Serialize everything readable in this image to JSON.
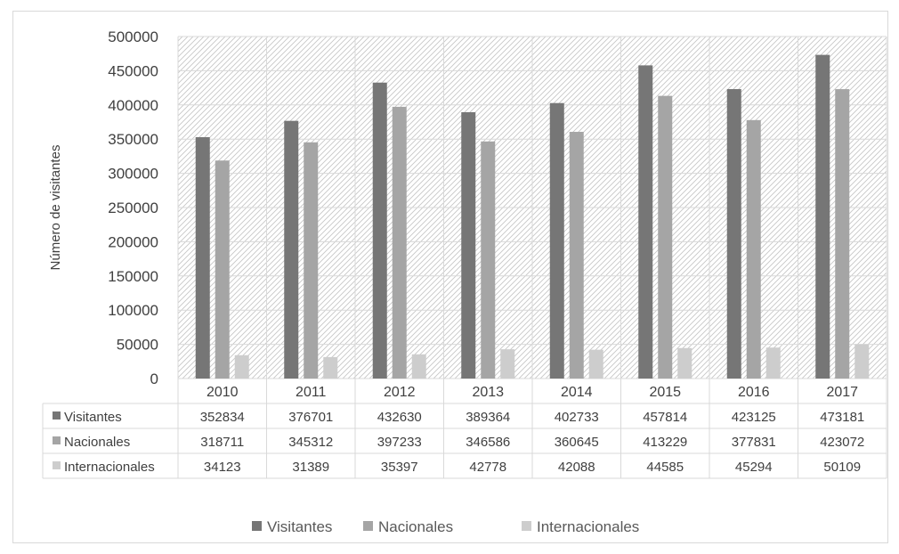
{
  "chart_data": {
    "type": "bar",
    "title": "",
    "xlabel": "",
    "ylabel": "Número de visitantes",
    "ylim": [
      0,
      500000
    ],
    "yticks": [
      0,
      50000,
      100000,
      150000,
      200000,
      250000,
      300000,
      350000,
      400000,
      450000,
      500000
    ],
    "categories": [
      "2010",
      "2011",
      "2012",
      "2013",
      "2014",
      "2015",
      "2016",
      "2017"
    ],
    "series": [
      {
        "name": "Visitantes",
        "color": "#767676",
        "values": [
          352834,
          376701,
          432630,
          389364,
          402733,
          457814,
          423125,
          473181
        ]
      },
      {
        "name": "Nacionales",
        "color": "#a5a5a5",
        "values": [
          318711,
          345312,
          397233,
          346586,
          360645,
          413229,
          377831,
          423072
        ]
      },
      {
        "name": "Internacionales",
        "color": "#cdcdcd",
        "values": [
          34123,
          31389,
          35397,
          42778,
          42088,
          44585,
          45294,
          50109
        ]
      }
    ],
    "grid": true,
    "data_table": true,
    "legend_position": "bottom"
  }
}
